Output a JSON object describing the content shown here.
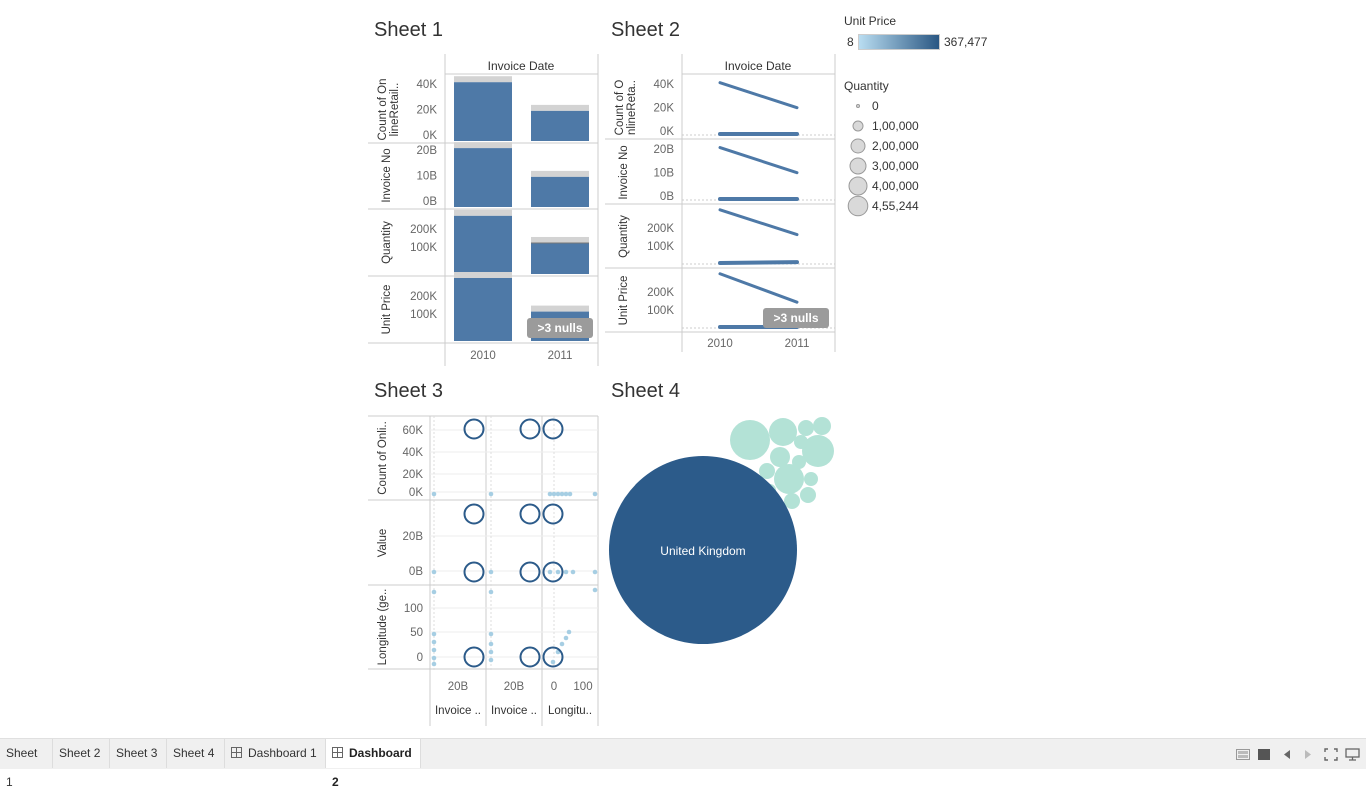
{
  "dashboard": {
    "sheet1": {
      "title": "Sheet 1",
      "column_header": "Invoice Date"
    },
    "sheet2": {
      "title": "Sheet 2",
      "column_header": "Invoice Date"
    },
    "sheet3": {
      "title": "Sheet 3"
    },
    "sheet4": {
      "title": "Sheet 4",
      "label": "United Kingdom"
    },
    "nulls_badge": ">3 nulls"
  },
  "legend": {
    "unit_price": {
      "title": "Unit Price",
      "min": "8",
      "max": "367,477",
      "color_low": "#b9ddf1",
      "color_high": "#2a5783"
    },
    "quantity": {
      "title": "Quantity",
      "values": [
        "0",
        "1,00,000",
        "2,00,000",
        "3,00,000",
        "4,00,000",
        "4,55,244"
      ]
    }
  },
  "tabs": [
    {
      "label": "Sheet 1",
      "type": "sheet",
      "active": false
    },
    {
      "label": "Sheet 2",
      "type": "sheet",
      "active": false
    },
    {
      "label": "Sheet 3",
      "type": "sheet",
      "active": false
    },
    {
      "label": "Sheet 4",
      "type": "sheet",
      "active": false
    },
    {
      "label": "Dashboard 1",
      "type": "dashboard",
      "active": false
    },
    {
      "label": "Dashboard 2",
      "type": "dashboard",
      "active": true
    }
  ],
  "toolbar_icons": [
    "presentation-layout-icon",
    "fit-icon",
    "prev-icon",
    "next-icon",
    "fullscreen-icon",
    "present-icon"
  ],
  "chart_data": [
    {
      "name": "Sheet 1",
      "type": "bar",
      "x_header": "Invoice Date",
      "categories": [
        "2010",
        "2011"
      ],
      "rows": [
        {
          "label": "Count of OnlineRetail..",
          "label_lines": [
            "Count of On",
            "lineRetail.."
          ],
          "ticks": [
            "40K",
            "20K",
            "0K"
          ],
          "values": [
            42000,
            21500
          ],
          "ylim": [
            0,
            45000
          ]
        },
        {
          "label": "Invoice No",
          "label_lines": [
            "Invoice No"
          ],
          "ticks": [
            "20B",
            "10B",
            "0B"
          ],
          "values": [
            21500000000,
            11000000000
          ],
          "ylim": [
            0,
            23000000000
          ]
        },
        {
          "label": "Quantity",
          "label_lines": [
            "Quantity"
          ],
          "ticks": [
            "200K",
            "100K"
          ],
          "values": [
            300000,
            160000
          ],
          "ylim": [
            0,
            325000
          ]
        },
        {
          "label": "Unit Price",
          "label_lines": [
            "Unit Price"
          ],
          "ticks": [
            "200K",
            "100K"
          ],
          "values": [
            300000,
            140000
          ],
          "ylim": [
            0,
            300000
          ]
        }
      ],
      "color": "#4e79a7",
      "reference_color": "#d3d3d3"
    },
    {
      "name": "Sheet 2",
      "type": "line",
      "x_header": "Invoice Date",
      "categories": [
        "2010",
        "2011"
      ],
      "rows": [
        {
          "label": "Count of OnlineRetail..",
          "label_lines": [
            "Count of O",
            "nlineReta.."
          ],
          "ticks": [
            "40K",
            "20K",
            "0K"
          ],
          "upper": [
            42000,
            21500
          ],
          "lower": [
            0,
            0
          ],
          "ylim": [
            0,
            45000
          ]
        },
        {
          "label": "Invoice No",
          "label_lines": [
            "Invoice No"
          ],
          "ticks": [
            "20B",
            "10B",
            "0B"
          ],
          "upper": [
            21500000000,
            11000000000
          ],
          "lower": [
            0,
            0
          ],
          "ylim": [
            0,
            23000000000
          ]
        },
        {
          "label": "Quantity",
          "label_lines": [
            "Quantity"
          ],
          "ticks": [
            "200K",
            "100K"
          ],
          "upper": [
            300000,
            160000
          ],
          "lower": [
            0,
            5000
          ],
          "ylim": [
            0,
            310000
          ]
        },
        {
          "label": "Unit Price",
          "label_lines": [
            "Unit Price"
          ],
          "ticks": [
            "200K",
            "100K"
          ],
          "upper": [
            300000,
            140000
          ],
          "lower": [
            0,
            0
          ],
          "ylim": [
            0,
            310000
          ]
        }
      ],
      "color": "#4e79a7"
    },
    {
      "name": "Sheet 3",
      "type": "scatter",
      "rows": [
        {
          "label": "Count of Onli..",
          "ticks": [
            "60K",
            "40K",
            "20K",
            "0K"
          ]
        },
        {
          "label": "Value",
          "ticks": [
            "20B",
            "0B"
          ]
        },
        {
          "label": "Longitude (ge..",
          "ticks": [
            "100",
            "50",
            "0"
          ]
        }
      ],
      "columns": [
        {
          "label": "Invoice ..",
          "ticks": [
            "20B"
          ]
        },
        {
          "label": "Invoice ..",
          "ticks": [
            "20B"
          ]
        },
        {
          "label": "Longitu..",
          "ticks": [
            "0",
            "100"
          ]
        }
      ],
      "point_color": "#a6cee3",
      "ring_color": "#2c5b8a"
    },
    {
      "name": "Sheet 4",
      "type": "bubble",
      "labeled_bubble": "United Kingdom",
      "big_color": "#2c5b8a",
      "small_color": "#b3e2d6"
    }
  ]
}
